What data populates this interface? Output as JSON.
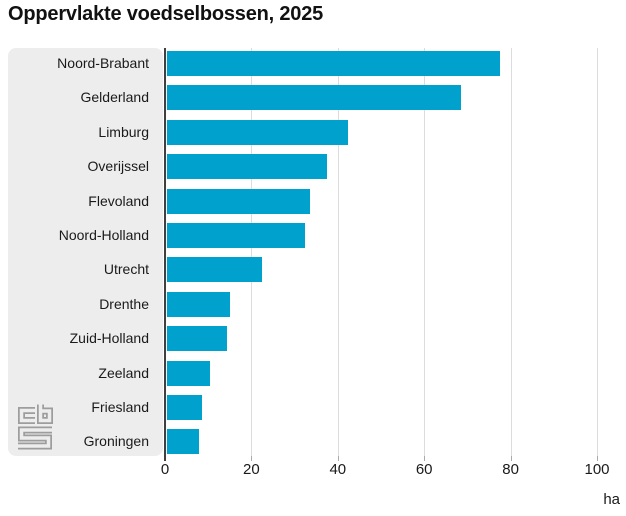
{
  "header": {
    "title": "Oppervlakte voedselbossen, 2025"
  },
  "chart_data": {
    "type": "bar",
    "orientation": "horizontal",
    "title": "Oppervlakte voedselbossen, 2025",
    "categories": [
      "Noord-Brabant",
      "Gelderland",
      "Limburg",
      "Overijssel",
      "Flevoland",
      "Noord-Holland",
      "Utrecht",
      "Drenthe",
      "Zuid-Holland",
      "Zeeland",
      "Friesland",
      "Groningen"
    ],
    "values": [
      77,
      68,
      42,
      37,
      33,
      32,
      22,
      14.5,
      14,
      10,
      8,
      7.5
    ],
    "xlabel": "ha",
    "ylabel": "",
    "xlim": [
      0,
      100
    ],
    "x_ticks": [
      0,
      20,
      40,
      60,
      80,
      100
    ],
    "unit": "ha",
    "grid": "vertical",
    "legend": "none"
  },
  "branding": {
    "logo_name": "cbs-logo"
  },
  "colors": {
    "bar": "#00a1cd",
    "panel_bg": "#ededed",
    "gridline": "#dcdcdc",
    "axis": "#404040",
    "tick": "#ababab",
    "text": "#1a1a1a",
    "logo": "#9d9d9d"
  }
}
